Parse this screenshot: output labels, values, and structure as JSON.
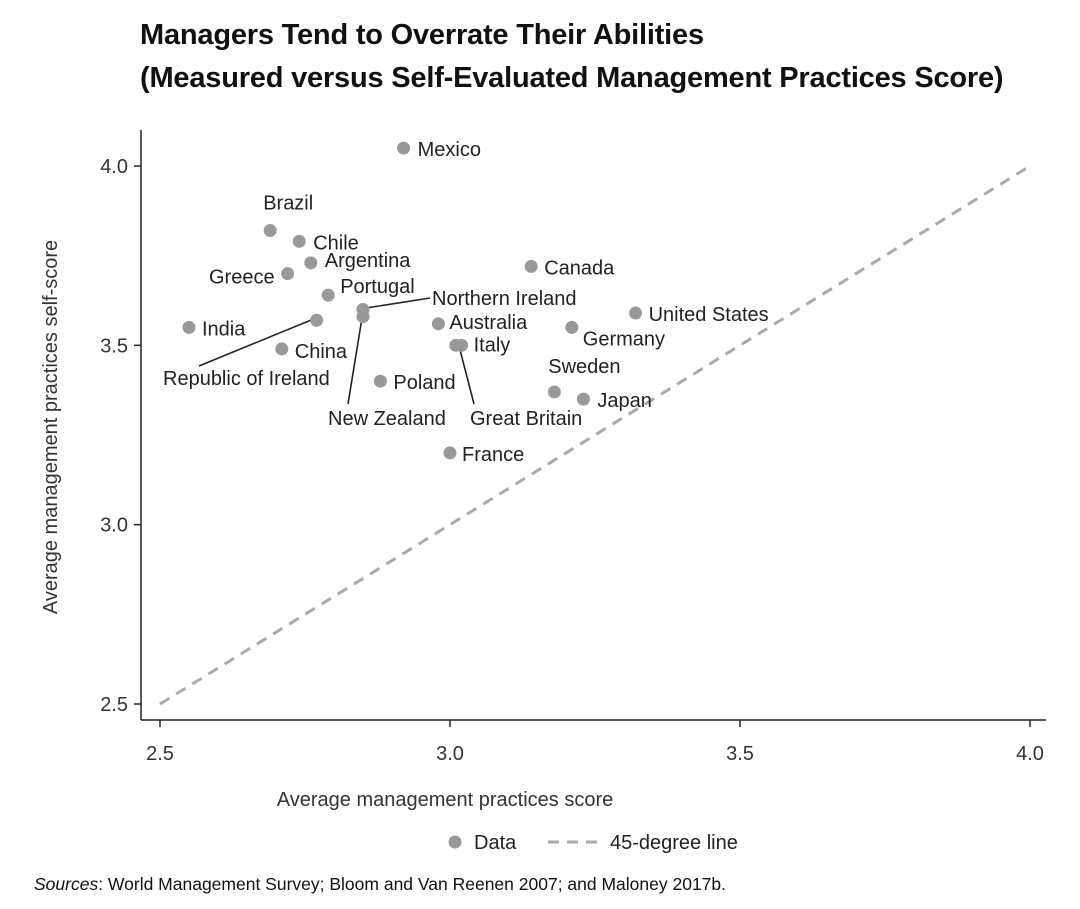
{
  "title": {
    "line1": "Managers Tend to Overrate Their Abilities",
    "line2": "(Measured versus Self-Evaluated Management Practices Score)"
  },
  "chart_data": {
    "type": "scatter",
    "xlabel": "Average management practices score",
    "ylabel": "Average management practices self-score",
    "xlim": [
      2.5,
      4.0
    ],
    "ylim": [
      2.5,
      4.1
    ],
    "xticks": [
      "2.5",
      "3.0",
      "3.5",
      "4.0"
    ],
    "yticks": [
      "2.5",
      "3.0",
      "3.5",
      "4.0"
    ],
    "grid": false,
    "legend_placement": "bottom-center",
    "legend": [
      {
        "label": "Data",
        "kind": "marker"
      },
      {
        "label": "45-degree line",
        "kind": "dashed-line"
      }
    ],
    "reference_line": {
      "name": "45-degree line",
      "from": [
        2.5,
        2.5
      ],
      "to": [
        4.0,
        4.0
      ]
    },
    "colors": {
      "marker": "#999999",
      "reference_line": "#aaaaaa",
      "axis": "#222222"
    },
    "points": [
      {
        "label": "Mexico",
        "x": 2.92,
        "y": 4.05
      },
      {
        "label": "Brazil",
        "x": 2.69,
        "y": 3.82
      },
      {
        "label": "Chile",
        "x": 2.74,
        "y": 3.79
      },
      {
        "label": "Argentina",
        "x": 2.76,
        "y": 3.73
      },
      {
        "label": "Greece",
        "x": 2.72,
        "y": 3.7
      },
      {
        "label": "Portugal",
        "x": 2.79,
        "y": 3.64
      },
      {
        "label": "Northern Ireland",
        "x": 2.85,
        "y": 3.6
      },
      {
        "label": "India",
        "x": 2.55,
        "y": 3.55
      },
      {
        "label": "Republic of Ireland",
        "x": 2.77,
        "y": 3.57
      },
      {
        "label": "New Zealand",
        "x": 2.85,
        "y": 3.58
      },
      {
        "label": "China",
        "x": 2.71,
        "y": 3.49
      },
      {
        "label": "Australia",
        "x": 2.98,
        "y": 3.56
      },
      {
        "label": "Great Britain",
        "x": 3.01,
        "y": 3.5
      },
      {
        "label": "Italy",
        "x": 3.02,
        "y": 3.5
      },
      {
        "label": "Poland",
        "x": 2.88,
        "y": 3.4
      },
      {
        "label": "France",
        "x": 3.0,
        "y": 3.2
      },
      {
        "label": "Canada",
        "x": 3.14,
        "y": 3.72
      },
      {
        "label": "Germany",
        "x": 3.21,
        "y": 3.55
      },
      {
        "label": "United States",
        "x": 3.32,
        "y": 3.59
      },
      {
        "label": "Sweden",
        "x": 3.18,
        "y": 3.37
      },
      {
        "label": "Japan",
        "x": 3.23,
        "y": 3.35
      }
    ]
  },
  "footer": {
    "sources_label": "Sources",
    "sources_text": ": World Management Survey; Bloom and Van Reenen 2007; and Maloney 2017b."
  }
}
